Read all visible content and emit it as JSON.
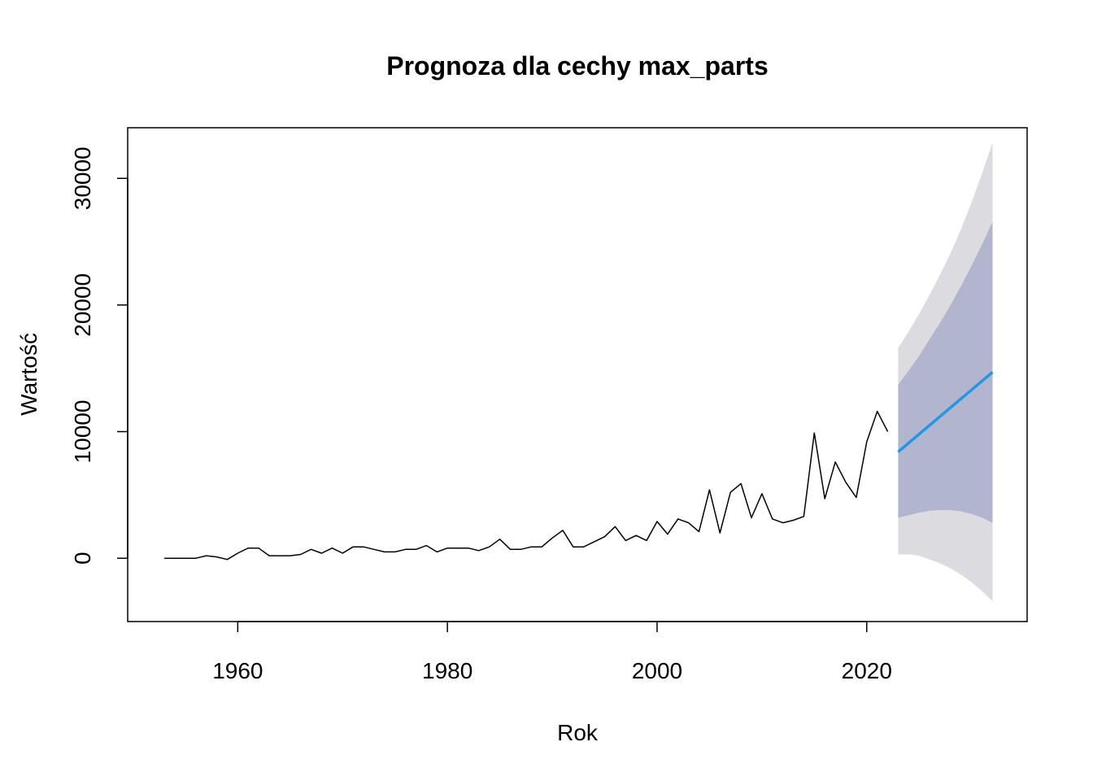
{
  "chart_data": {
    "type": "line",
    "title": "Prognoza dla cechy max_parts",
    "xlabel": "Rok",
    "ylabel": "Wartość",
    "xlim": [
      1949.5,
      2035.3
    ],
    "ylim": [
      -5000,
      34000
    ],
    "x_ticks": [
      {
        "value": 1960,
        "label": "1960"
      },
      {
        "value": 1980,
        "label": "1980"
      },
      {
        "value": 2000,
        "label": "2000"
      },
      {
        "value": 2020,
        "label": "2020"
      }
    ],
    "y_ticks": [
      {
        "value": 0,
        "label": "0"
      },
      {
        "value": 10000,
        "label": "10000"
      },
      {
        "value": 20000,
        "label": "20000"
      },
      {
        "value": 30000,
        "label": "30000"
      }
    ],
    "grid": false,
    "colors": {
      "history": "#000000",
      "forecast": "#2297e6",
      "band80": "#b1b5ce",
      "band95": "#dbdbe0"
    },
    "series": [
      {
        "role": "history",
        "x": [
          1953,
          1954,
          1955,
          1956,
          1957,
          1958,
          1959,
          1960,
          1961,
          1962,
          1963,
          1964,
          1965,
          1966,
          1967,
          1968,
          1969,
          1970,
          1971,
          1972,
          1973,
          1974,
          1975,
          1976,
          1977,
          1978,
          1979,
          1980,
          1981,
          1982,
          1983,
          1984,
          1985,
          1986,
          1987,
          1988,
          1989,
          1990,
          1991,
          1992,
          1993,
          1994,
          1995,
          1996,
          1997,
          1998,
          1999,
          2000,
          2001,
          2002,
          2003,
          2004,
          2005,
          2006,
          2007,
          2008,
          2009,
          2010,
          2011,
          2012,
          2013,
          2014,
          2015,
          2016,
          2017,
          2018,
          2019,
          2020,
          2021,
          2022
        ],
        "values": [
          0,
          0,
          0,
          0,
          200,
          100,
          -100,
          400,
          800,
          800,
          200,
          200,
          200,
          300,
          700,
          400,
          800,
          400,
          900,
          900,
          700,
          500,
          500,
          700,
          700,
          1000,
          500,
          800,
          800,
          800,
          600,
          900,
          1500,
          700,
          700,
          900,
          900,
          1600,
          2200,
          900,
          900,
          1300,
          1700,
          2500,
          1400,
          1800,
          1400,
          2900,
          1900,
          3100,
          2800,
          2100,
          5400,
          2000,
          5200,
          5900,
          3200,
          5100,
          3100,
          2800,
          3000,
          3300,
          9900,
          4700,
          7600,
          6000,
          4800,
          9200,
          11600,
          10000
        ]
      },
      {
        "role": "forecast",
        "x": [
          2023,
          2032
        ],
        "values": [
          8400,
          14700
        ]
      }
    ],
    "bands": [
      {
        "level": 95,
        "x": [
          2023,
          2024,
          2025,
          2026,
          2027,
          2028,
          2029,
          2030,
          2031,
          2032
        ],
        "lower": [
          300,
          300,
          200,
          -100,
          -400,
          -800,
          -1300,
          -1900,
          -2600,
          -3400
        ],
        "upper": [
          16600,
          17900,
          19300,
          20800,
          22400,
          24100,
          26000,
          28100,
          30400,
          32800
        ]
      },
      {
        "level": 80,
        "x": [
          2023,
          2024,
          2025,
          2026,
          2027,
          2028,
          2029,
          2030,
          2031,
          2032
        ],
        "lower": [
          3200,
          3400,
          3600,
          3750,
          3800,
          3800,
          3700,
          3500,
          3200,
          2800
        ],
        "upper": [
          13700,
          14800,
          16000,
          17300,
          18600,
          20000,
          21500,
          23100,
          24800,
          26600
        ]
      }
    ]
  }
}
